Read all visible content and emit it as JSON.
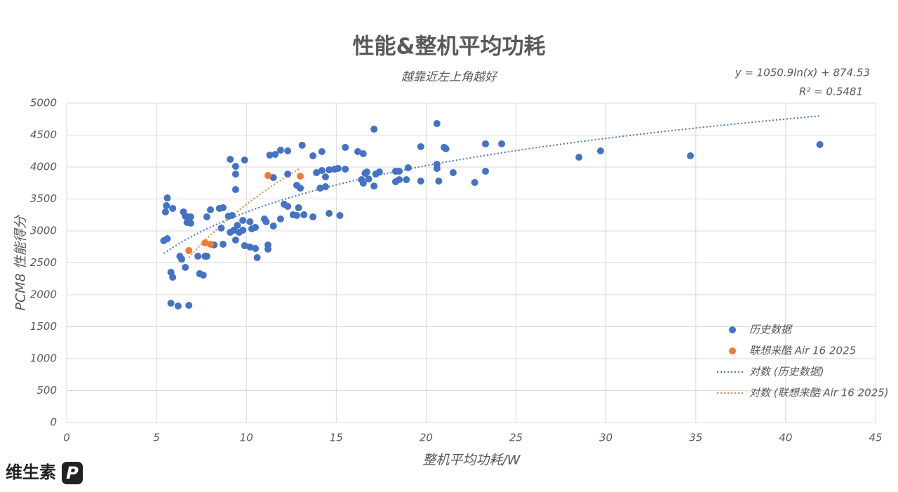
{
  "brand": {
    "name": "维生素",
    "mark": "P"
  },
  "chart_data": {
    "type": "scatter",
    "title": "性能&整机平均功耗",
    "subtitle": "越靠近左上角越好",
    "x_label": "整机平均功耗/W",
    "y_label": "PCM8 性能得分",
    "xlim": [
      0,
      45
    ],
    "xticks": [
      0,
      5,
      10,
      15,
      20,
      25,
      30,
      35,
      40,
      45
    ],
    "ylim": [
      0,
      5000
    ],
    "yticks": [
      0,
      500,
      1000,
      1500,
      2000,
      2500,
      3000,
      3500,
      4000,
      4500,
      5000
    ],
    "grid": true,
    "legend": "right",
    "series": [
      {
        "name": "历史数据",
        "color": "#4472c4",
        "x": [
          5.6,
          5.55,
          5.5,
          5.9,
          5.4,
          5.6,
          5.8,
          5.9,
          5.8,
          6.2,
          6.8,
          6.3,
          6.4,
          6.5,
          6.6,
          6.7,
          6.9,
          6.7,
          6.9,
          6.6,
          7.3,
          7.4,
          7.6,
          7.7,
          7.8,
          7.8,
          8.0,
          8.2,
          8.5,
          8.7,
          8.6,
          8.7,
          9.0,
          9.2,
          9.1,
          9.3,
          9.4,
          9.1,
          9.4,
          9.4,
          9.4,
          9.5,
          9.6,
          9.8,
          9.8,
          9.9,
          9.9,
          10.2,
          10.2,
          10.3,
          10.5,
          10.5,
          10.6,
          11.0,
          11.1,
          11.2,
          11.2,
          11.3,
          11.6,
          11.5,
          11.5,
          11.9,
          11.9,
          12.3,
          12.1,
          12.3,
          12.3,
          12.6,
          12.8,
          12.9,
          12.8,
          13.0,
          13.1,
          13.2,
          13.7,
          13.7,
          13.9,
          14.1,
          14.2,
          14.2,
          14.4,
          14.4,
          14.6,
          14.6,
          14.9,
          15.1,
          15.5,
          15.2,
          15.5,
          16.2,
          16.5,
          16.4,
          16.5,
          16.6,
          16.7,
          16.8,
          17.1,
          17.2,
          17.4,
          17.1,
          18.3,
          18.5,
          18.3,
          18.5,
          19.0,
          18.9,
          19.7,
          19.7,
          20.6,
          20.6,
          20.6,
          20.7,
          21.1,
          21.0,
          21.5,
          22.7,
          23.3,
          23.3,
          24.2,
          28.5,
          29.7,
          34.7,
          41.9
        ],
        "values": [
          3516,
          3395,
          3297,
          3352,
          2846,
          2879,
          2352,
          2275,
          1868,
          1824,
          1835,
          2604,
          2560,
          3297,
          3231,
          3220,
          3220,
          3132,
          3121,
          2429,
          2604,
          2330,
          2308,
          2604,
          2604,
          3220,
          3330,
          2780,
          3352,
          3363,
          3044,
          2791,
          3231,
          3242,
          2978,
          3011,
          2857,
          4121,
          4011,
          3890,
          3648,
          3088,
          2978,
          3011,
          3165,
          4110,
          2769,
          2747,
          3143,
          3033,
          3055,
          2725,
          2582,
          3187,
          3143,
          2780,
          2714,
          4187,
          4198,
          3835,
          3077,
          3187,
          4264,
          4253,
          3418,
          3385,
          3890,
          3253,
          3242,
          3363,
          3714,
          3670,
          4341,
          3253,
          3220,
          4176,
          3912,
          3670,
          3945,
          4242,
          3846,
          3692,
          3956,
          3275,
          3967,
          3978,
          3967,
          3242,
          4308,
          4242,
          4209,
          3802,
          3747,
          3901,
          3923,
          3813,
          3703,
          3890,
          3923,
          4593,
          3934,
          3934,
          3769,
          3802,
          3989,
          3802,
          4319,
          3780,
          4681,
          4044,
          3978,
          3780,
          4286,
          4308,
          3912,
          3758,
          4363,
          3934,
          4363,
          4154,
          4253,
          4176,
          4352
        ]
      },
      {
        "name": "联想来酷 Air 16 2025",
        "color": "#ed7d31",
        "x": [
          6.8,
          7.7,
          8.0,
          11.2,
          13.0
        ],
        "values": [
          2692,
          2813,
          2791,
          3868,
          3857
        ]
      }
    ],
    "trendlines": [
      {
        "name": "对数 (历史数据)",
        "color": "#4472c4",
        "a": 1050.9,
        "b": 874.53,
        "equation": "y = 1050.9ln(x) + 874.53",
        "r2": "R² = 0.5481"
      },
      {
        "name": "对数 (联想来酷 Air 16 2025)",
        "color": "#ed7d31",
        "a": 2165,
        "b": -1570
      }
    ]
  }
}
